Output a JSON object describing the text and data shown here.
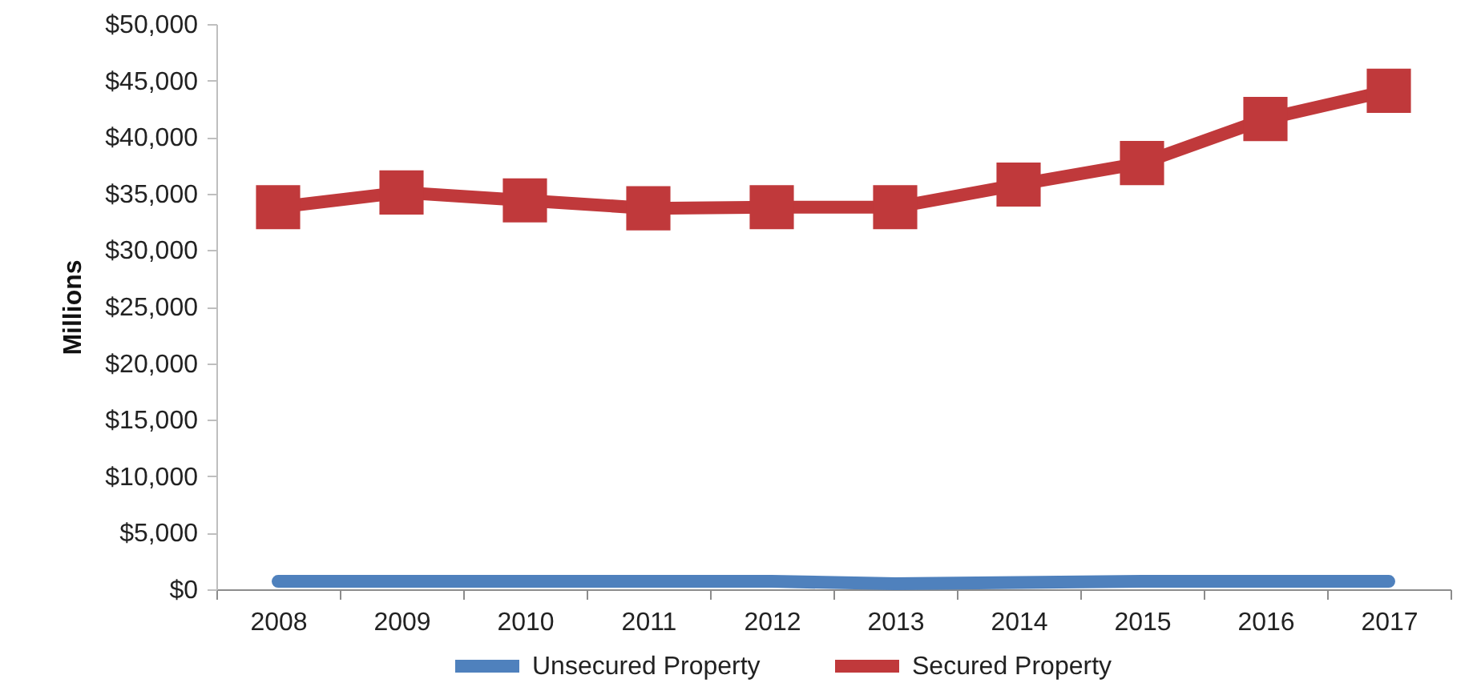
{
  "chart_data": {
    "type": "line",
    "ylabel": "Millions",
    "categories": [
      "2008",
      "2009",
      "2010",
      "2011",
      "2012",
      "2013",
      "2014",
      "2015",
      "2016",
      "2017"
    ],
    "series": [
      {
        "name": "Unsecured Property",
        "color": "#4f81bd",
        "marker": "none",
        "values": [
          700,
          700,
          700,
          700,
          700,
          500,
          600,
          700,
          700,
          700
        ]
      },
      {
        "name": "Secured Property",
        "color": "#c0393b",
        "marker": "square",
        "values": [
          33800,
          35100,
          34400,
          33700,
          33800,
          33800,
          35800,
          37700,
          41600,
          44100
        ]
      }
    ],
    "ylim": [
      0,
      50000
    ],
    "yticks": [
      {
        "value": 0,
        "label": "$0"
      },
      {
        "value": 5000,
        "label": "$5,000"
      },
      {
        "value": 10000,
        "label": "$10,000"
      },
      {
        "value": 15000,
        "label": "$15,000"
      },
      {
        "value": 20000,
        "label": "$20,000"
      },
      {
        "value": 25000,
        "label": "$25,000"
      },
      {
        "value": 30000,
        "label": "$30,000"
      },
      {
        "value": 35000,
        "label": "$35,000"
      },
      {
        "value": 40000,
        "label": "$40,000"
      },
      {
        "value": 45000,
        "label": "$45,000"
      },
      {
        "value": 50000,
        "label": "$50,000"
      }
    ],
    "legend": "bottom",
    "line_style": "solid"
  }
}
